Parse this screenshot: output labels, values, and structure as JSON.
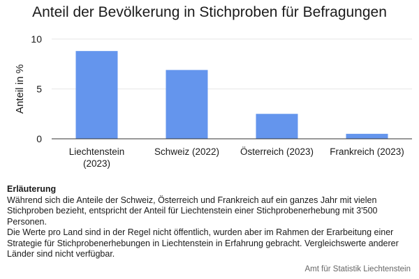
{
  "chart_data": {
    "type": "bar",
    "title": "Anteil der Bevölkerung in Stichproben für Befragungen",
    "ylabel": "Anteil in %",
    "xlabel": "",
    "categories": [
      [
        "Liechtenstein",
        "(2023)"
      ],
      [
        "Schweiz (2022)"
      ],
      [
        "Österreich (2023)"
      ],
      [
        "Frankreich (2023)"
      ]
    ],
    "values": [
      8.8,
      6.9,
      2.5,
      0.5
    ],
    "ylim": [
      0,
      10
    ],
    "yticks": [
      0,
      5,
      10
    ],
    "grid": true,
    "bar_color": "#6495ED"
  },
  "note": {
    "heading": "Erläuterung",
    "paragraphs": [
      "Während sich die Anteile der Schweiz, Österreich und Frankreich auf ein ganzes Jahr mit vielen Stichproben bezieht, entspricht der Anteil für Liechtenstein einer Stichprobenerhebung mit 3'500 Personen.",
      "Die Werte pro Land sind in der Regel nicht öffentlich, wurden aber im Rahmen der Erarbeitung einer Strategie für Stichprobenerhebungen in Liechtenstein in Erfahrung gebracht. Vergleichswerte anderer Länder sind nicht verfügbar."
    ]
  },
  "source": "Amt für Statistik Liechtenstein"
}
